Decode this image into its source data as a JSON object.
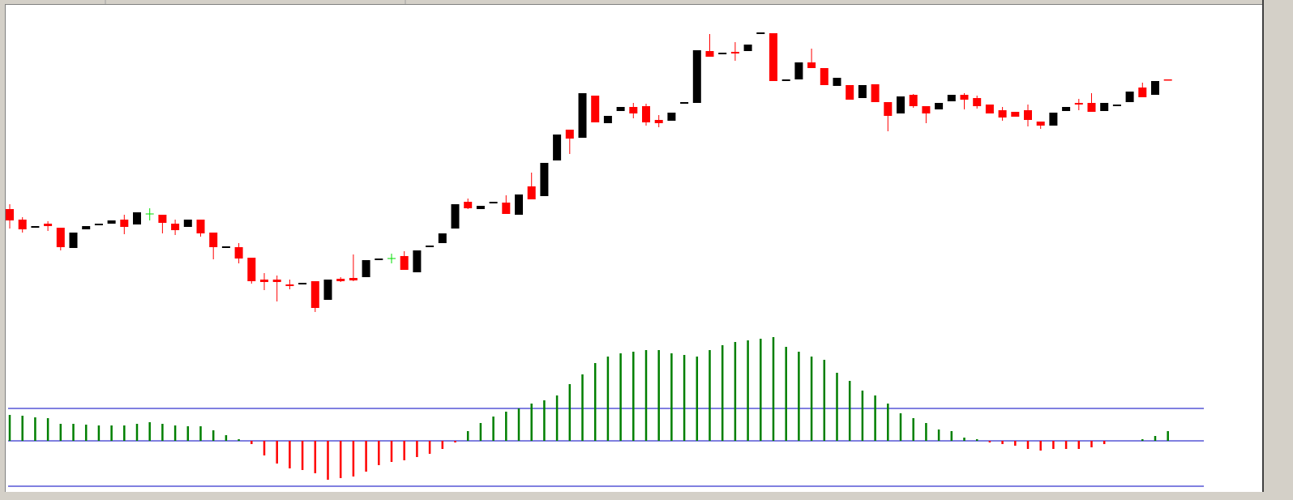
{
  "chart_data": {
    "type": "candlestick",
    "ylim": [
      0,
      400
    ],
    "colors": {
      "up": "#000000",
      "down": "#ff0000",
      "doji": "#00dd00"
    },
    "candles": [
      {
        "o": 142,
        "h": 148,
        "l": 118,
        "c": 128
      },
      {
        "o": 129,
        "h": 132,
        "l": 113,
        "c": 117
      },
      {
        "o": 119,
        "h": 121,
        "l": 119,
        "c": 121
      },
      {
        "o": 124,
        "h": 127,
        "l": 115,
        "c": 121
      },
      {
        "o": 119,
        "h": 119,
        "l": 91,
        "c": 95
      },
      {
        "o": 94,
        "h": 113,
        "l": 94,
        "c": 113
      },
      {
        "o": 117,
        "h": 121,
        "l": 117,
        "c": 121
      },
      {
        "o": 122,
        "h": 124,
        "l": 122,
        "c": 124
      },
      {
        "o": 124,
        "h": 128,
        "l": 124,
        "c": 128
      },
      {
        "o": 129,
        "h": 135,
        "l": 111,
        "c": 120
      },
      {
        "o": 123,
        "h": 138,
        "l": 123,
        "c": 138
      },
      {
        "o": 136,
        "h": 143,
        "l": 128,
        "c": 136
      },
      {
        "o": 135,
        "h": 135,
        "l": 112,
        "c": 125
      },
      {
        "o": 124,
        "h": 129,
        "l": 110,
        "c": 116
      },
      {
        "o": 120,
        "h": 129,
        "l": 120,
        "c": 129
      },
      {
        "o": 129,
        "h": 129,
        "l": 108,
        "c": 112
      },
      {
        "o": 113,
        "h": 113,
        "l": 80,
        "c": 95
      },
      {
        "o": 94,
        "h": 96,
        "l": 94,
        "c": 96
      },
      {
        "o": 95,
        "h": 100,
        "l": 75,
        "c": 81
      },
      {
        "o": 82,
        "h": 82,
        "l": 50,
        "c": 53
      },
      {
        "o": 55,
        "h": 63,
        "l": 42,
        "c": 52
      },
      {
        "o": 55,
        "h": 60,
        "l": 28,
        "c": 52
      },
      {
        "o": 49,
        "h": 55,
        "l": 43,
        "c": 47
      },
      {
        "o": 49,
        "h": 51,
        "l": 49,
        "c": 51
      },
      {
        "o": 53,
        "h": 53,
        "l": 15,
        "c": 20
      },
      {
        "o": 30,
        "h": 55,
        "l": 30,
        "c": 55
      },
      {
        "o": 56,
        "h": 58,
        "l": 52,
        "c": 53
      },
      {
        "o": 57,
        "h": 86,
        "l": 53,
        "c": 54
      },
      {
        "o": 58,
        "h": 79,
        "l": 58,
        "c": 79
      },
      {
        "o": 79,
        "h": 81,
        "l": 79,
        "c": 81
      },
      {
        "o": 81,
        "h": 87,
        "l": 75,
        "c": 81
      },
      {
        "o": 84,
        "h": 90,
        "l": 67,
        "c": 67
      },
      {
        "o": 64,
        "h": 91,
        "l": 64,
        "c": 91
      },
      {
        "o": 95,
        "h": 97,
        "l": 95,
        "c": 97
      },
      {
        "o": 100,
        "h": 112,
        "l": 100,
        "c": 112
      },
      {
        "o": 118,
        "h": 148,
        "l": 118,
        "c": 148
      },
      {
        "o": 151,
        "h": 155,
        "l": 142,
        "c": 143
      },
      {
        "o": 142,
        "h": 146,
        "l": 142,
        "c": 146
      },
      {
        "o": 149,
        "h": 151,
        "l": 149,
        "c": 151
      },
      {
        "o": 150,
        "h": 159,
        "l": 136,
        "c": 136
      },
      {
        "o": 135,
        "h": 160,
        "l": 135,
        "c": 160
      },
      {
        "o": 170,
        "h": 187,
        "l": 154,
        "c": 154
      },
      {
        "o": 158,
        "h": 199,
        "l": 158,
        "c": 199
      },
      {
        "o": 202,
        "h": 234,
        "l": 202,
        "c": 234
      },
      {
        "o": 240,
        "h": 240,
        "l": 210,
        "c": 229
      },
      {
        "o": 230,
        "h": 285,
        "l": 230,
        "c": 285
      },
      {
        "o": 282,
        "h": 282,
        "l": 249,
        "c": 249
      },
      {
        "o": 248,
        "h": 257,
        "l": 248,
        "c": 257
      },
      {
        "o": 263,
        "h": 268,
        "l": 263,
        "c": 268
      },
      {
        "o": 268,
        "h": 273,
        "l": 254,
        "c": 260
      },
      {
        "o": 269,
        "h": 272,
        "l": 245,
        "c": 249
      },
      {
        "o": 252,
        "h": 258,
        "l": 243,
        "c": 248
      },
      {
        "o": 251,
        "h": 261,
        "l": 251,
        "c": 261
      },
      {
        "o": 272,
        "h": 274,
        "l": 272,
        "c": 274
      },
      {
        "o": 273,
        "h": 338,
        "l": 273,
        "c": 338
      },
      {
        "o": 337,
        "h": 358,
        "l": 330,
        "c": 330
      },
      {
        "o": 333,
        "h": 335,
        "l": 333,
        "c": 335
      },
      {
        "o": 336,
        "h": 348,
        "l": 325,
        "c": 334
      },
      {
        "o": 337,
        "h": 345,
        "l": 337,
        "c": 345
      },
      {
        "o": 358,
        "h": 360,
        "l": 358,
        "c": 360
      },
      {
        "o": 359,
        "h": 359,
        "l": 300,
        "c": 300
      },
      {
        "o": 300,
        "h": 302,
        "l": 300,
        "c": 302
      },
      {
        "o": 302,
        "h": 323,
        "l": 302,
        "c": 323
      },
      {
        "o": 323,
        "h": 340,
        "l": 316,
        "c": 316
      },
      {
        "o": 316,
        "h": 316,
        "l": 295,
        "c": 295
      },
      {
        "o": 294,
        "h": 304,
        "l": 294,
        "c": 304
      },
      {
        "o": 295,
        "h": 295,
        "l": 277,
        "c": 277
      },
      {
        "o": 279,
        "h": 295,
        "l": 279,
        "c": 295
      },
      {
        "o": 296,
        "h": 296,
        "l": 274,
        "c": 274
      },
      {
        "o": 274,
        "h": 274,
        "l": 238,
        "c": 257
      },
      {
        "o": 260,
        "h": 281,
        "l": 260,
        "c": 281
      },
      {
        "o": 283,
        "h": 284,
        "l": 267,
        "c": 269
      },
      {
        "o": 269,
        "h": 269,
        "l": 248,
        "c": 260
      },
      {
        "o": 265,
        "h": 273,
        "l": 265,
        "c": 273
      },
      {
        "o": 275,
        "h": 283,
        "l": 275,
        "c": 283
      },
      {
        "o": 283,
        "h": 285,
        "l": 265,
        "c": 277
      },
      {
        "o": 279,
        "h": 282,
        "l": 266,
        "c": 269
      },
      {
        "o": 271,
        "h": 271,
        "l": 260,
        "c": 260
      },
      {
        "o": 264,
        "h": 268,
        "l": 251,
        "c": 255
      },
      {
        "o": 262,
        "h": 262,
        "l": 256,
        "c": 256
      },
      {
        "o": 264,
        "h": 271,
        "l": 244,
        "c": 252
      },
      {
        "o": 250,
        "h": 250,
        "l": 241,
        "c": 245
      },
      {
        "o": 245,
        "h": 261,
        "l": 245,
        "c": 261
      },
      {
        "o": 263,
        "h": 268,
        "l": 263,
        "c": 268
      },
      {
        "o": 273,
        "h": 278,
        "l": 264,
        "c": 271
      },
      {
        "o": 273,
        "h": 285,
        "l": 262,
        "c": 262
      },
      {
        "o": 263,
        "h": 273,
        "l": 263,
        "c": 273
      },
      {
        "o": 269,
        "h": 271,
        "l": 269,
        "c": 271
      },
      {
        "o": 274,
        "h": 287,
        "l": 274,
        "c": 287
      },
      {
        "o": 292,
        "h": 298,
        "l": 280,
        "c": 280
      },
      {
        "o": 283,
        "h": 300,
        "l": 283,
        "c": 300
      },
      {
        "o": 302,
        "h": 302,
        "l": 301,
        "c": 301
      }
    ],
    "indicator": {
      "type": "histogram",
      "y2lim": [
        -61,
        144
      ],
      "levels": [
        40,
        0,
        -56
      ],
      "level_color": "#0000c0",
      "colors": {
        "positive": "#007f00",
        "negative": "#ff0000"
      },
      "values": [
        32,
        31,
        29,
        28,
        21,
        21,
        20,
        19,
        19,
        19,
        21,
        23,
        21,
        19,
        18,
        18,
        13,
        7,
        2,
        -4,
        -18,
        -28,
        -34,
        -36,
        -40,
        -48,
        -46,
        -44,
        -38,
        -30,
        -26,
        -24,
        -20,
        -16,
        -10,
        -2,
        12,
        22,
        30,
        36,
        40,
        46,
        50,
        56,
        70,
        82,
        96,
        104,
        108,
        110,
        112,
        112,
        108,
        106,
        104,
        112,
        118,
        122,
        124,
        126,
        128,
        116,
        110,
        104,
        100,
        84,
        74,
        62,
        56,
        46,
        34,
        28,
        22,
        14,
        12,
        4,
        2,
        -2,
        -4,
        -6,
        -10,
        -12,
        -10,
        -10,
        -10,
        -8,
        -4,
        0,
        0,
        2,
        6,
        12
      ]
    }
  }
}
